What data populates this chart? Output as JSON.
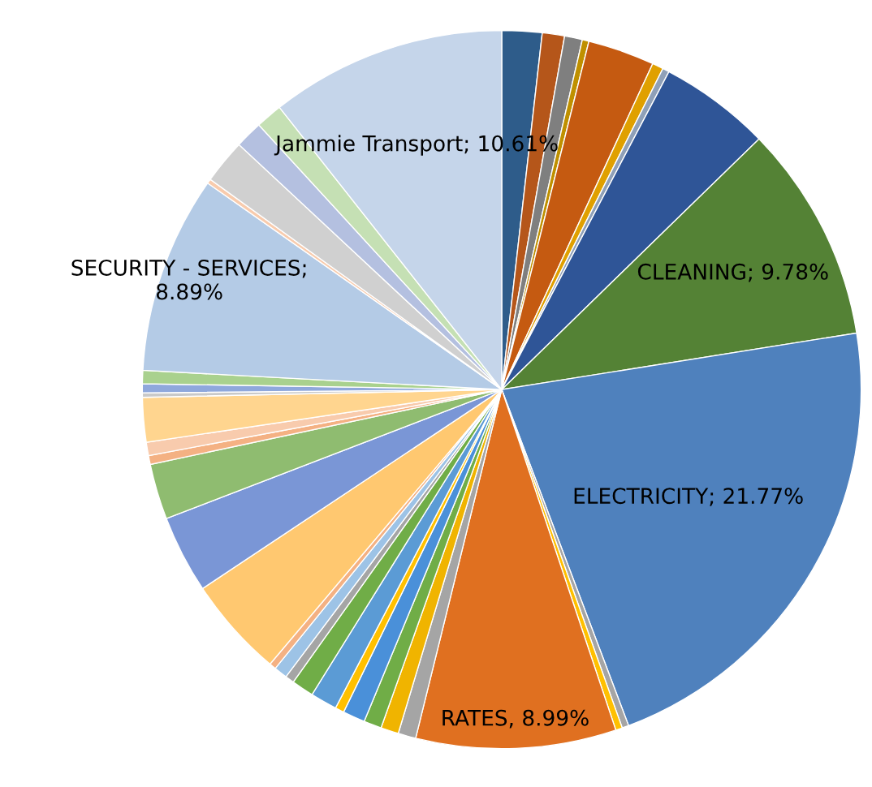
{
  "chart_data": {
    "type": "pie",
    "categories": [
      null,
      null,
      null,
      null,
      null,
      null,
      null,
      null,
      null,
      null,
      null,
      null,
      null,
      null,
      null,
      null,
      null,
      null,
      null,
      null,
      null,
      null,
      null,
      null,
      null,
      null,
      null,
      null,
      null,
      null,
      null,
      null,
      null,
      null,
      null,
      null,
      null,
      null
    ],
    "values": [
      1.8,
      1.0,
      0.8,
      0.3,
      3.0,
      0.5,
      0.3,
      5.0,
      9.78,
      21.77,
      0.3,
      0.3,
      8.99,
      0.8,
      0.8,
      0.8,
      1.0,
      0.4,
      1.2,
      1.0,
      0.4,
      0.6,
      0.3,
      4.5,
      3.5,
      2.5,
      0.4,
      0.6,
      2.0,
      0.2,
      0.4,
      0.6,
      8.89,
      0.2,
      2.0,
      1.24,
      1.2,
      10.61
    ],
    "colors": [
      "#2e5c8a",
      "#b5561a",
      "#7f7f7f",
      "#bf9000",
      "#c55a11",
      "#e0a000",
      "#8fa0b8",
      "#2f5597",
      "#548235",
      "#4f81bd",
      "#a5a5a5",
      "#ffc000",
      "#e07020",
      "#a5a5a5",
      "#f0b400",
      "#70ad47",
      "#4a90d9",
      "#ffc000",
      "#5b9bd5",
      "#70ad47",
      "#a5a5a5",
      "#9dc3e6",
      "#f4b183",
      "#ffc870",
      "#7a96d6",
      "#8fbc70",
      "#f4b183",
      "#f8cbad",
      "#ffd58f",
      "#c9c9c9",
      "#8fa8dc",
      "#a9d18e",
      "#b4cbe6",
      "#f8cbad",
      "#d0d0d0",
      "#b4c0e0",
      "#c5e0b4",
      "#c5d5ea"
    ],
    "value_labels": [
      null,
      null,
      null,
      null,
      null,
      null,
      null,
      null,
      "CLEANING; 9.78%",
      "ELECTRICITY; 21.77%",
      null,
      null,
      "RATES, 8.99%",
      null,
      null,
      null,
      null,
      null,
      null,
      null,
      null,
      null,
      null,
      null,
      null,
      null,
      null,
      null,
      null,
      null,
      null,
      null,
      "SECURITY - SERVICES;\n8.89%",
      null,
      null,
      null,
      null,
      "Jammie Transport; 10.61%"
    ]
  }
}
